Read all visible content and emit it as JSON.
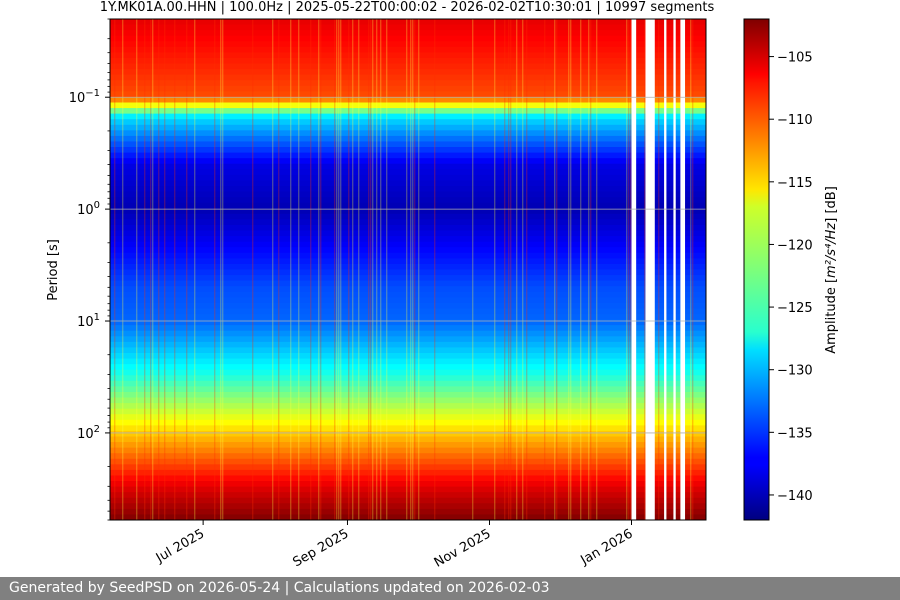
{
  "chart_data": {
    "type": "heatmap",
    "title": "1Y.MK01A.00.HHN | 100.0Hz | 2025-05-22T00:00:02 - 2026-02-02T10:30:01 | 10997 segments",
    "xlabel": "",
    "ylabel": "Period [s]",
    "y_scale": "log",
    "y_inverted": true,
    "ylim": [
      0.02,
      600
    ],
    "y_ticks": [
      {
        "value": 0.1,
        "base": "10",
        "exp": "−1"
      },
      {
        "value": 1,
        "base": "10",
        "exp": "0"
      },
      {
        "value": 10,
        "base": "10",
        "exp": "1"
      },
      {
        "value": 100,
        "base": "10",
        "exp": "2"
      }
    ],
    "xlim": [
      "2025-05-22",
      "2026-02-02"
    ],
    "x_ticks": [
      {
        "date": "2025-07-01",
        "label": "Jul 2025"
      },
      {
        "date": "2025-09-01",
        "label": "Sep 2025"
      },
      {
        "date": "2025-11-01",
        "label": "Nov 2025"
      },
      {
        "date": "2026-01-01",
        "label": "Jan 2026"
      }
    ],
    "grid": true,
    "colorbar": {
      "label_prefix": "Amplitude [",
      "label_math": "m²/s⁴/Hz",
      "label_suffix": "] [dB]",
      "range": [
        -142,
        -102
      ],
      "ticks": [
        -105,
        -110,
        -115,
        -120,
        -125,
        -130,
        -135,
        -140
      ],
      "colormap": "jet"
    },
    "approx_amplitude_profile_db": [
      {
        "period": 0.02,
        "db": -106
      },
      {
        "period": 0.1,
        "db": -110
      },
      {
        "period": 0.15,
        "db": -128
      },
      {
        "period": 0.4,
        "db": -138
      },
      {
        "period": 1,
        "db": -140
      },
      {
        "period": 5,
        "db": -134
      },
      {
        "period": 10,
        "db": -133
      },
      {
        "period": 30,
        "db": -126
      },
      {
        "period": 100,
        "db": -115
      },
      {
        "period": 300,
        "db": -106
      },
      {
        "period": 600,
        "db": -102
      }
    ],
    "data_gaps": [
      [
        "2026-01-01",
        "2026-01-03"
      ],
      [
        "2026-01-07",
        "2026-01-11"
      ],
      [
        "2026-01-15",
        "2026-01-16"
      ],
      [
        "2026-01-19",
        "2026-01-20"
      ],
      [
        "2026-01-22",
        "2026-01-24"
      ]
    ]
  },
  "footer": {
    "text": "Generated by SeedPSD on 2026-05-24 | Calculations updated on 2026-02-03"
  }
}
